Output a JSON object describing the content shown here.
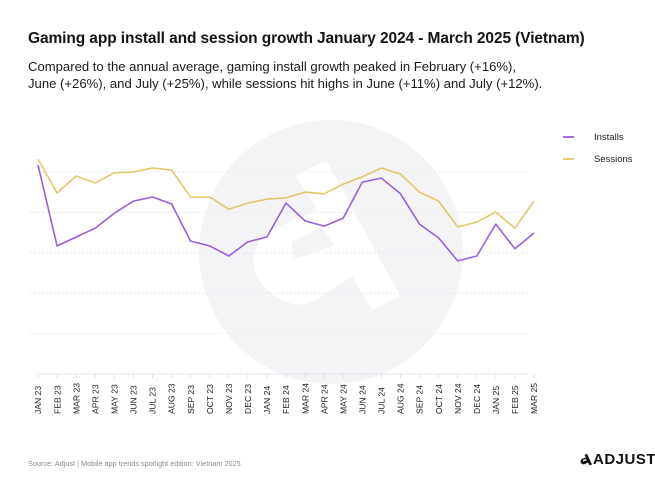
{
  "header": {
    "title": "Gaming app install and session growth January 2024 - March 2025 (Vietnam)",
    "subtitle_lines": [
      "Compared to the annual average, gaming install growth peaked in February (+16%),",
      "June (+26%), and July (+25%), while sessions hit highs in June (+11%) and July (+12%)."
    ]
  },
  "legend": {
    "items": [
      {
        "label": "Installs",
        "color": "#a66fe6"
      },
      {
        "label": "Sessions",
        "color": "#e5cd78"
      }
    ]
  },
  "footer": {
    "source": "Source: Adjust | Mobile app trends spotlight edition: Vietnam 2025",
    "brand": "ADJUST"
  },
  "colors": {
    "installs": "#9a5ee0",
    "sessions": "#e2c86a",
    "grid": "#e6e6ec",
    "axis": "#e8e8f0",
    "watermark": "#f4f4f6"
  },
  "chart_data": {
    "type": "line",
    "title": "Gaming app install and session growth January 2024 - March 2025 (Vietnam)",
    "xlabel": "",
    "ylabel": "",
    "y_tick_labels_shown": false,
    "y_units_note": "relative index estimated from gridlines (no y-axis labels shown); 1 unit = 1 gridline step",
    "ylim": [
      0,
      5.3
    ],
    "gridlines": [
      1,
      2,
      3,
      4,
      5
    ],
    "grid": true,
    "legend_position": "top-right",
    "categories": [
      "JAN 23",
      "FEB 23",
      "MAR 23",
      "APR 23",
      "MAY 23",
      "JUN 23",
      "JUL 23",
      "AUG 23",
      "SEP 23",
      "OCT 23",
      "NOV 23",
      "DEC 23",
      "JAN 24",
      "FEB 24",
      "MAR 24",
      "APR 24",
      "MAY 24",
      "JUN 24",
      "JUL 24",
      "AUG 24",
      "SEP 24",
      "OCT 24",
      "NOV 24",
      "DEC 24",
      "JAN 25",
      "FEB 25",
      "MAR 25"
    ],
    "series": [
      {
        "name": "Installs",
        "values": [
          5.17,
          3.17,
          3.39,
          3.61,
          3.98,
          4.28,
          4.38,
          4.21,
          3.29,
          3.17,
          2.92,
          3.27,
          3.39,
          4.23,
          3.79,
          3.66,
          3.86,
          4.75,
          4.85,
          4.46,
          3.71,
          3.37,
          2.8,
          2.92,
          3.71,
          3.1,
          3.49
        ]
      },
      {
        "name": "Sessions",
        "values": [
          5.32,
          4.48,
          4.9,
          4.73,
          4.98,
          5.0,
          5.1,
          5.05,
          4.38,
          4.38,
          4.08,
          4.23,
          4.33,
          4.36,
          4.5,
          4.46,
          4.7,
          4.88,
          5.1,
          4.95,
          4.5,
          4.28,
          3.64,
          3.76,
          4.01,
          3.61,
          4.28
        ]
      }
    ]
  }
}
